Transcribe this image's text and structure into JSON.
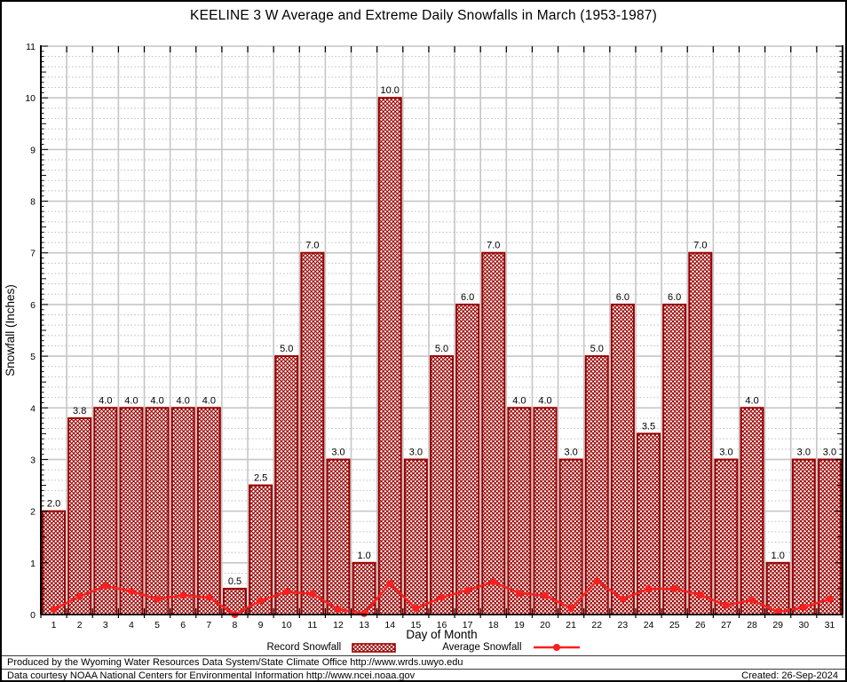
{
  "title": "KEELINE 3 W Average and Extreme Daily Snowfalls in March (1953-1987)",
  "chart_data": {
    "type": "bar",
    "categories": [
      1,
      2,
      3,
      4,
      5,
      6,
      7,
      8,
      9,
      10,
      11,
      12,
      13,
      14,
      15,
      16,
      17,
      18,
      19,
      20,
      21,
      22,
      23,
      24,
      25,
      26,
      27,
      28,
      29,
      30,
      31
    ],
    "series": [
      {
        "name": "Record Snowfall",
        "type": "bar",
        "values": [
          2.0,
          3.8,
          4.0,
          4.0,
          4.0,
          4.0,
          4.0,
          0.5,
          2.5,
          5.0,
          7.0,
          3.0,
          1.0,
          10.0,
          3.0,
          5.0,
          6.0,
          7.0,
          4.0,
          4.0,
          3.0,
          5.0,
          6.0,
          3.5,
          6.0,
          7.0,
          3.0,
          4.0,
          1.0,
          3.0,
          3.0
        ],
        "value_labels": [
          "2.0",
          "3.8",
          "4.0",
          "4.0",
          "4.0",
          "4.0",
          "4.0",
          "0.5",
          "2.5",
          "5.0",
          "7.0",
          "3.0",
          "1.0",
          "10.0",
          "3.0",
          "5.0",
          "6.0",
          "7.0",
          "4.0",
          "4.0",
          "3.0",
          "5.0",
          "6.0",
          "3.5",
          "6.0",
          "7.0",
          "3.0",
          "4.0",
          "1.0",
          "3.0",
          "3.0"
        ]
      },
      {
        "name": "Average Snowfall",
        "type": "line",
        "values": [
          0.1,
          0.35,
          0.55,
          0.45,
          0.3,
          0.37,
          0.33,
          0.0,
          0.27,
          0.44,
          0.4,
          0.1,
          0.02,
          0.6,
          0.12,
          0.33,
          0.47,
          0.63,
          0.41,
          0.37,
          0.12,
          0.65,
          0.3,
          0.5,
          0.5,
          0.38,
          0.18,
          0.28,
          0.05,
          0.14,
          0.3
        ]
      }
    ],
    "xlabel": "Day of Month",
    "ylabel": "Snowfall (Inches)",
    "ylim": [
      0,
      11
    ],
    "yticks": [
      0,
      1,
      2,
      3,
      4,
      5,
      6,
      7,
      8,
      9,
      10,
      11
    ],
    "grid": "solid major gridlines, dotted minor gridlines every 0.2",
    "legend_position": "bottom-center"
  },
  "colors": {
    "bar_border": "#990000",
    "bar_hatch": "#990000",
    "line": "#f91f1f",
    "grid_major": "#c6c6c6",
    "grid_minor": "#bdbdbd",
    "axis": "#000000"
  },
  "legend": {
    "record_label": "Record Snowfall",
    "average_label": "Average Snowfall"
  },
  "footer": {
    "line1": "Produced by the Wyoming Water Resources Data System/State Climate Office http://www.wrds.uwyo.edu",
    "line2": "Data courtesy NOAA National Centers for Environmental Information http://www.ncei.noaa.gov",
    "created": "Created: 26-Sep-2024"
  }
}
